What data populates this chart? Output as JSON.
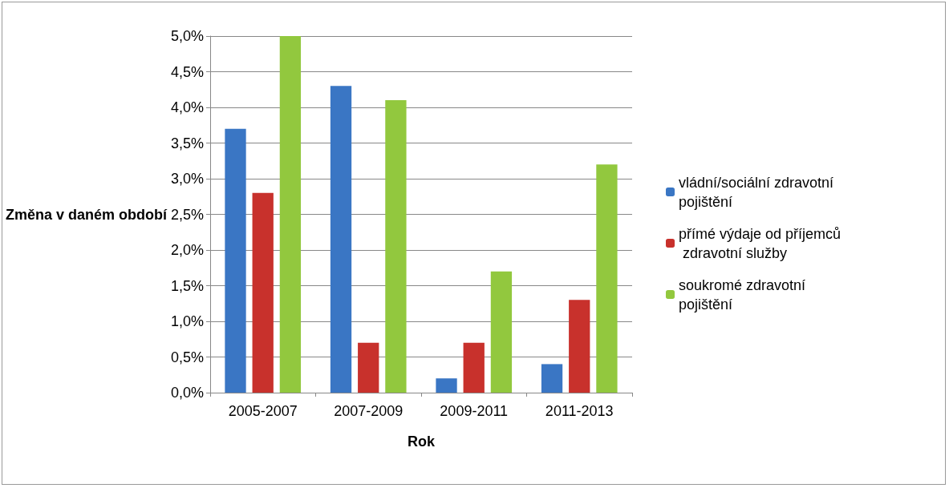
{
  "chart_data": {
    "type": "bar",
    "xlabel": "Rok",
    "ylabel": "Změna v daném období",
    "categories": [
      "2005-2007",
      "2007-2009",
      "2009-2011",
      "2011-2013"
    ],
    "series": [
      {
        "name": "vládní/sociální zdravotní pojištění",
        "color": "#3a76c4",
        "values": [
          3.7,
          4.3,
          0.2,
          0.4
        ]
      },
      {
        "name": "přímé výdaje od příjemců zdravotní služby",
        "color": "#c8312c",
        "values": [
          2.8,
          0.7,
          0.7,
          1.3
        ]
      },
      {
        "name": "soukromé zdravotní pojištění",
        "color": "#92c83e",
        "values": [
          5.0,
          4.1,
          1.7,
          3.2
        ]
      }
    ],
    "ylim": [
      0,
      5
    ],
    "yticks": [
      {
        "value": 0,
        "label": "0,0%"
      },
      {
        "value": 0.5,
        "label": "0,5%"
      },
      {
        "value": 1,
        "label": "1,0%"
      },
      {
        "value": 1.5,
        "label": "1,5%"
      },
      {
        "value": 2,
        "label": "2,0%"
      },
      {
        "value": 2.5,
        "label": "2,5%"
      },
      {
        "value": 3,
        "label": "3,0%"
      },
      {
        "value": 3.5,
        "label": "3,5%"
      },
      {
        "value": 4,
        "label": "4,0%"
      },
      {
        "value": 4.5,
        "label": "4,5%"
      },
      {
        "value": 5,
        "label": "5,0%"
      }
    ],
    "grid": "y",
    "legend": "right"
  }
}
